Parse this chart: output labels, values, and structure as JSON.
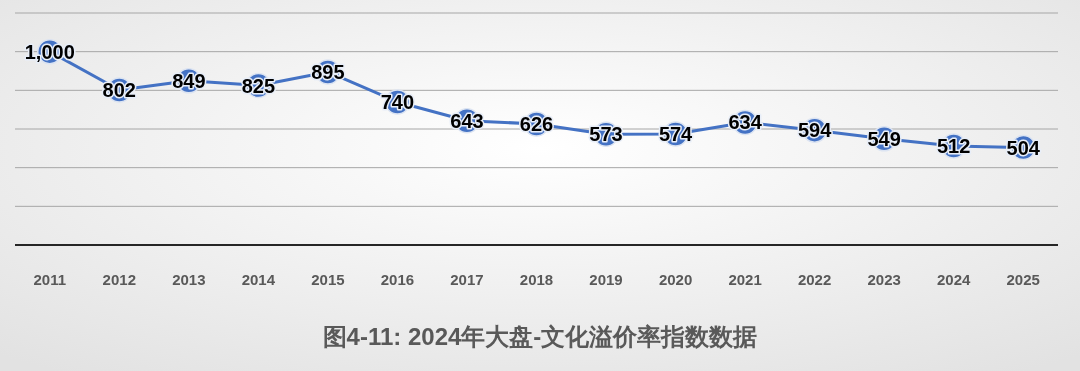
{
  "chart_data": {
    "type": "line",
    "title": "图4-11: 2024年大盘-文化溢价率指数数据",
    "categories": [
      "2011",
      "2012",
      "2013",
      "2014",
      "2015",
      "2016",
      "2017",
      "2018",
      "2019",
      "2020",
      "2021",
      "2022",
      "2023",
      "2024",
      "2025"
    ],
    "series": [
      {
        "color": "#4472c4",
        "values": [
          1000,
          802,
          849,
          825,
          895,
          740,
          643,
          626,
          573,
          574,
          634,
          594,
          549,
          512,
          504
        ],
        "value_labels": [
          "1,000",
          "802",
          "849",
          "825",
          "895",
          "740",
          "643",
          "626",
          "573",
          "574",
          "634",
          "594",
          "549",
          "512",
          "504"
        ]
      }
    ],
    "ylim": [
      0,
      1200
    ],
    "yticks": [
      {
        "value": 0,
        "label": null
      },
      {
        "value": 200,
        "label": null
      },
      {
        "value": 400,
        "label": null
      },
      {
        "value": 600,
        "label": null
      },
      {
        "value": 800,
        "label": null
      },
      {
        "value": 1000,
        "label": null
      },
      {
        "value": 1200,
        "label": null
      }
    ],
    "tick_labels": "x",
    "grid": "y",
    "marker": "circle",
    "line_style": "solid"
  }
}
